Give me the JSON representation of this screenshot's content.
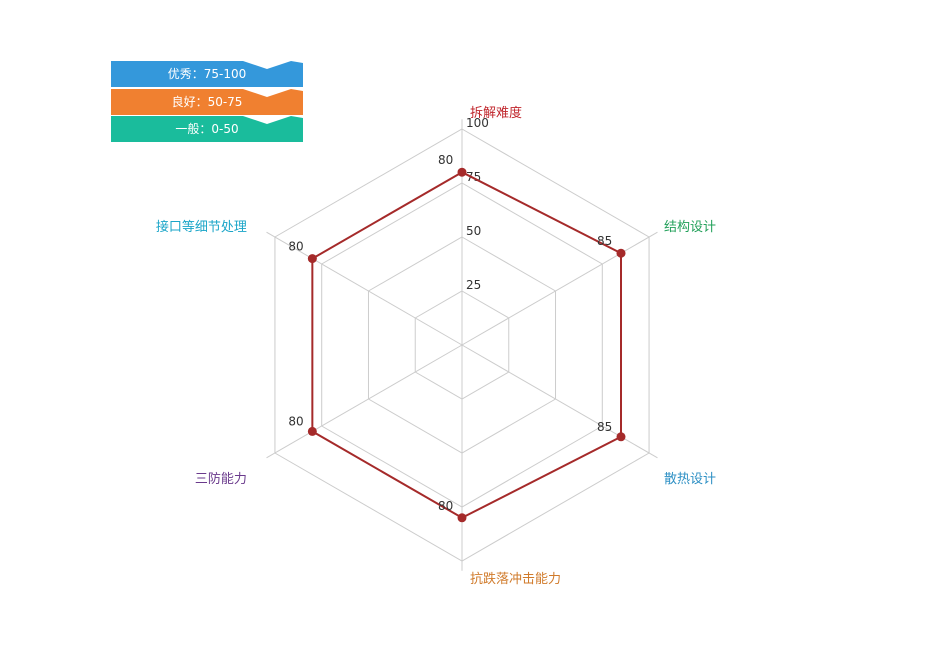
{
  "legend": [
    {
      "label": "优秀：75-100",
      "color": "#3498db"
    },
    {
      "label": "良好：50-75",
      "color": "#f08030"
    },
    {
      "label": "一般：0-50",
      "color": "#1abc9c"
    }
  ],
  "chart_data": {
    "type": "radar",
    "range": [
      0,
      100
    ],
    "ticks": [
      25,
      50,
      75,
      100
    ],
    "grid": true,
    "axes": [
      {
        "name": "拆解难度",
        "color": "#c0262c"
      },
      {
        "name": "结构设计",
        "color": "#22a05a"
      },
      {
        "name": "散热设计",
        "color": "#2c8fc4"
      },
      {
        "name": "抗跌落冲击能力",
        "color": "#d07a2a"
      },
      {
        "name": "三防能力",
        "color": "#6a3a8c"
      },
      {
        "name": "接口等细节处理",
        "color": "#1aa5c8"
      }
    ],
    "series": [
      {
        "values": [
          80,
          85,
          85,
          80,
          80,
          80
        ],
        "color": "#a52a2a"
      }
    ]
  }
}
